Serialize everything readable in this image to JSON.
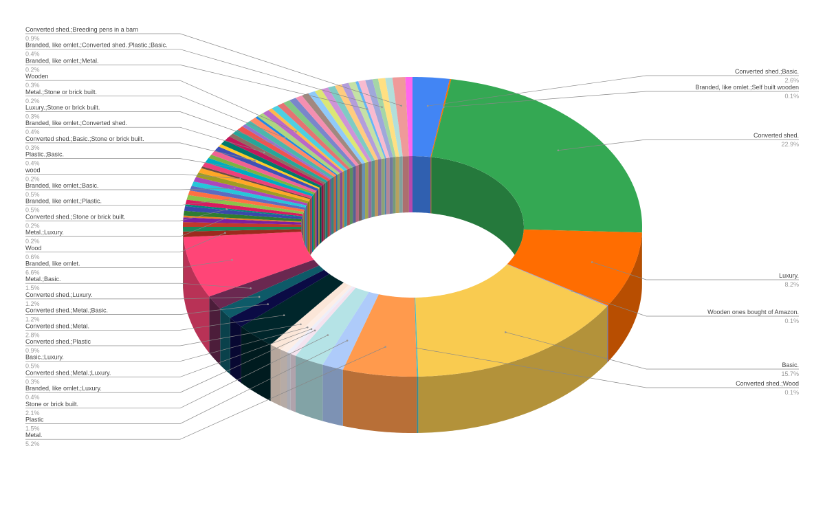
{
  "chart_data": {
    "type": "donut3d",
    "categories": [
      "Converted shed.;Basic.",
      "Branded, like omlet.;Self built wooden",
      "Converted shed.",
      "Luxury.",
      "Wooden ones bought of Amazon.",
      "Basic.",
      "Converted shed.;Wood",
      "Metal.",
      "Plastic",
      "Stone or brick built.",
      "Branded, like omlet.;Luxury.",
      "Converted shed.;Metal.;Luxury.",
      "Basic.;Luxury.",
      "Converted shed.;Plastic",
      "Converted shed.;Metal.",
      "Converted shed.;Metal.;Basic.",
      "Converted shed.;Luxury.",
      "Metal.;Basic.",
      "Branded, like omlet.",
      "Wood",
      null,
      null,
      null,
      "Metal.;Luxury.",
      null,
      null,
      "Converted shed.;Stone or brick built.",
      null,
      null,
      "Branded, like omlet.;Plastic.",
      null,
      null,
      "Branded, like omlet.;Basic.",
      null,
      null,
      "wood",
      null,
      null,
      "Plastic.;Basic.",
      null,
      null,
      "Converted shed.;Basic.;Stone or brick built.",
      null,
      null,
      "Branded, like omlet.;Converted shed.",
      null,
      null,
      "Luxury.;Stone or brick built.",
      null,
      null,
      "Metal.;Stone or brick built.",
      null,
      null,
      "Wooden",
      null,
      null,
      null,
      null,
      null,
      null,
      null,
      null,
      null,
      null,
      null,
      null,
      null,
      "Branded, like omlet.;Metal.",
      null,
      null,
      "Branded, like omlet.;Converted shed.;Plastic.;Basic.",
      null,
      null,
      "Converted shed.;Breeding pens in a barn",
      null
    ],
    "values": [
      2.6,
      0.1,
      22.9,
      8.2,
      0.1,
      15.7,
      0.1,
      5.2,
      1.5,
      2.1,
      0.4,
      0.3,
      0.5,
      0.9,
      2.8,
      1.2,
      1.2,
      1.5,
      6.6,
      0.6,
      0.5,
      0.5,
      0.5,
      0.2,
      0.5,
      0.5,
      0.2,
      0.5,
      0.5,
      0.5,
      0.5,
      0.5,
      0.5,
      0.5,
      0.5,
      0.2,
      0.5,
      0.5,
      0.4,
      0.5,
      0.5,
      0.3,
      0.5,
      0.5,
      0.4,
      0.5,
      0.5,
      0.3,
      0.5,
      0.5,
      0.2,
      0.5,
      0.5,
      0.3,
      0.5,
      0.5,
      0.5,
      0.5,
      0.5,
      0.5,
      0.5,
      0.5,
      0.5,
      0.5,
      0.5,
      0.5,
      0.5,
      0.2,
      0.5,
      0.5,
      0.4,
      0.5,
      0.5,
      0.9,
      0.5
    ],
    "value_labels": [
      "2.6%",
      "0.1%",
      "22.9%",
      "8.2%",
      "0.1%",
      "15.7%",
      "0.1%",
      "5.2%",
      "1.5%",
      "2.1%",
      "0.4%",
      "0.3%",
      "0.5%",
      "0.9%",
      "2.8%",
      "1.2%",
      "1.2%",
      "1.5%",
      "6.6%",
      "0.6%",
      null,
      null,
      null,
      "0.2%",
      null,
      null,
      "0.2%",
      null,
      null,
      "0.5%",
      null,
      null,
      "0.5%",
      null,
      null,
      "0.2%",
      null,
      null,
      "0.4%",
      null,
      null,
      "0.3%",
      null,
      null,
      "0.4%",
      null,
      null,
      "0.3%",
      null,
      null,
      "0.2%",
      null,
      null,
      "0.3%",
      null,
      null,
      null,
      null,
      null,
      null,
      null,
      null,
      null,
      null,
      null,
      null,
      null,
      "0.2%",
      null,
      null,
      "0.4%",
      null,
      null,
      "0.9%",
      null
    ],
    "colors": [
      "#4285f4",
      "#ff6d01",
      "#34a853",
      "#ff6d01",
      "#a0a0c8",
      "#f9cb50",
      "#46bdc6",
      "#ff9a4d",
      "#aecbfa",
      "#b5e3e6",
      "#f4e3ef",
      "#eeeef8",
      "#fdeee6",
      "#fbe6d8",
      "#00262b",
      "#0b0b45",
      "#0e5a68",
      "#6a2850",
      "#ff4577",
      "#9c2a1e",
      "#1b8a5a",
      "#c0392b",
      "#7b1fa2",
      "#e67e22",
      "#2e7d32",
      "#3949ab",
      "#00897b",
      "#d81b60",
      "#8bc34a",
      "#ff7043",
      "#5c6bc0",
      "#26c6da",
      "#ab47bc",
      "#9e9d24",
      "#ffa726",
      "#6d4c41",
      "#ec407a",
      "#00acc1",
      "#7cb342",
      "#f06292",
      "#3f51b5",
      "#ffca28",
      "#00796b",
      "#c2185b",
      "#8d6e63",
      "#26a69a",
      "#ef5350",
      "#9575cd",
      "#4db6ac",
      "#ff8a65",
      "#1e88e5",
      "#aed581",
      "#ba68c8",
      "#ffb74d",
      "#4dd0e1",
      "#e57373",
      "#81c784",
      "#7986cb",
      "#f48fb1",
      "#a1887f",
      "#90caf9",
      "#dce775",
      "#ce93d8",
      "#80cbc4",
      "#ffcc80",
      "#b39ddb",
      "#c5e1a5",
      "#64b5f6",
      "#f8bbd0",
      "#9fa8da",
      "#a5d6a7",
      "#ffe082",
      "#b2dfdb",
      "#ef9a9a",
      "#ff66ee"
    ]
  }
}
